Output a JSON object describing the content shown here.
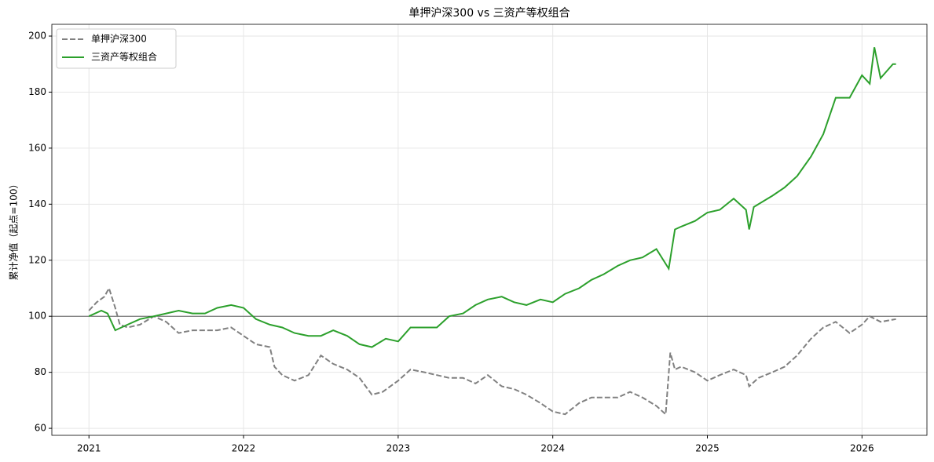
{
  "chart_data": {
    "type": "line",
    "title": "单押沪深300 vs 三资产等权组合",
    "y_label": "累计净值（起点=100）",
    "xlim": [
      2020.76,
      2026.42
    ],
    "xticks": [
      2021,
      2022,
      2023,
      2024,
      2025,
      2026
    ],
    "ylim": [
      57.5,
      204.2
    ],
    "yticks": [
      60,
      80,
      100,
      120,
      140,
      160,
      180,
      200
    ],
    "grid": true,
    "reference_line": 100,
    "legend": "upper left",
    "series": [
      {
        "name": "单押沪深300",
        "color": "#808080",
        "linestyle": "dashed",
        "x": [
          2021.0,
          2021.05,
          2021.1,
          2021.13,
          2021.17,
          2021.2,
          2021.25,
          2021.33,
          2021.42,
          2021.5,
          2021.58,
          2021.67,
          2021.75,
          2021.83,
          2021.92,
          2022.0,
          2022.08,
          2022.17,
          2022.2,
          2022.25,
          2022.33,
          2022.42,
          2022.5,
          2022.58,
          2022.67,
          2022.75,
          2022.83,
          2022.9,
          2023.0,
          2023.08,
          2023.17,
          2023.25,
          2023.33,
          2023.42,
          2023.5,
          2023.58,
          2023.67,
          2023.75,
          2023.83,
          2023.92,
          2024.0,
          2024.08,
          2024.17,
          2024.25,
          2024.33,
          2024.42,
          2024.5,
          2024.58,
          2024.67,
          2024.73,
          2024.76,
          2024.79,
          2024.83,
          2024.92,
          2025.0,
          2025.08,
          2025.17,
          2025.25,
          2025.27,
          2025.33,
          2025.42,
          2025.5,
          2025.58,
          2025.67,
          2025.75,
          2025.83,
          2025.92,
          2026.0,
          2026.05,
          2026.12,
          2026.22
        ],
        "values": [
          102,
          105,
          107,
          110,
          103,
          97,
          96,
          97,
          100,
          98,
          94,
          95,
          95,
          95,
          96,
          93,
          90,
          89,
          82,
          79,
          77,
          79,
          86,
          83,
          81,
          78,
          72,
          73,
          77,
          81,
          80,
          79,
          78,
          78,
          76,
          79,
          75,
          74,
          72,
          69,
          66,
          65,
          69,
          71,
          71,
          71,
          73,
          71,
          68,
          65,
          87,
          81,
          82,
          80,
          77,
          79,
          81,
          79,
          75,
          78,
          80,
          82,
          86,
          92,
          96,
          98,
          94,
          97,
          100,
          98,
          99
        ]
      },
      {
        "name": "三资产等权组合",
        "color": "#2ca02c",
        "linestyle": "solid",
        "x": [
          2021.0,
          2021.08,
          2021.12,
          2021.17,
          2021.25,
          2021.33,
          2021.42,
          2021.5,
          2021.58,
          2021.67,
          2021.75,
          2021.83,
          2021.92,
          2022.0,
          2022.08,
          2022.17,
          2022.25,
          2022.33,
          2022.42,
          2022.5,
          2022.58,
          2022.67,
          2022.75,
          2022.83,
          2022.92,
          2023.0,
          2023.08,
          2023.17,
          2023.25,
          2023.33,
          2023.42,
          2023.5,
          2023.58,
          2023.67,
          2023.75,
          2023.83,
          2023.92,
          2024.0,
          2024.08,
          2024.17,
          2024.25,
          2024.33,
          2024.42,
          2024.5,
          2024.58,
          2024.67,
          2024.75,
          2024.79,
          2024.83,
          2024.92,
          2025.0,
          2025.08,
          2025.17,
          2025.25,
          2025.27,
          2025.3,
          2025.42,
          2025.5,
          2025.58,
          2025.67,
          2025.75,
          2025.83,
          2025.92,
          2026.0,
          2026.05,
          2026.08,
          2026.12,
          2026.2,
          2026.22
        ],
        "values": [
          100,
          102,
          101,
          95,
          97,
          99,
          100,
          101,
          102,
          101,
          101,
          103,
          104,
          103,
          99,
          97,
          96,
          94,
          93,
          93,
          95,
          93,
          90,
          89,
          92,
          91,
          96,
          96,
          96,
          100,
          101,
          104,
          106,
          107,
          105,
          104,
          106,
          105,
          108,
          110,
          113,
          115,
          118,
          120,
          121,
          124,
          117,
          131,
          132,
          134,
          137,
          138,
          142,
          138,
          131,
          139,
          143,
          146,
          150,
          157,
          165,
          178,
          178,
          186,
          183,
          196,
          185,
          190,
          190
        ]
      }
    ]
  }
}
